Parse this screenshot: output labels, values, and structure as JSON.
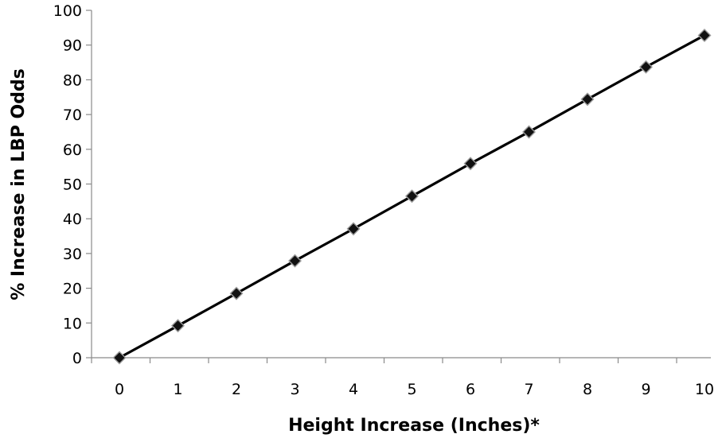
{
  "chart_data": {
    "type": "line",
    "title": "",
    "xlabel": "Height Increase (Inches)*",
    "ylabel": "% Increase in LBP Odds",
    "x": [
      0,
      1,
      2,
      3,
      4,
      5,
      6,
      7,
      8,
      9,
      10
    ],
    "series": [
      {
        "values": [
          0,
          9.2,
          18.5,
          27.9,
          37.1,
          46.5,
          55.9,
          65.0,
          74.4,
          83.7,
          92.8
        ]
      }
    ],
    "xticks": [
      "0",
      "1",
      "2",
      "3",
      "4",
      "5",
      "6",
      "7",
      "8",
      "9",
      "10"
    ],
    "yticks": [
      "0",
      "10",
      "20",
      "30",
      "40",
      "50",
      "60",
      "70",
      "80",
      "90",
      "100"
    ],
    "xlim": [
      0,
      10
    ],
    "ylim": [
      0,
      100
    ],
    "grid": false,
    "legend": "none",
    "marker": "diamond",
    "line_color": "#000000",
    "marker_color": "#111111"
  }
}
